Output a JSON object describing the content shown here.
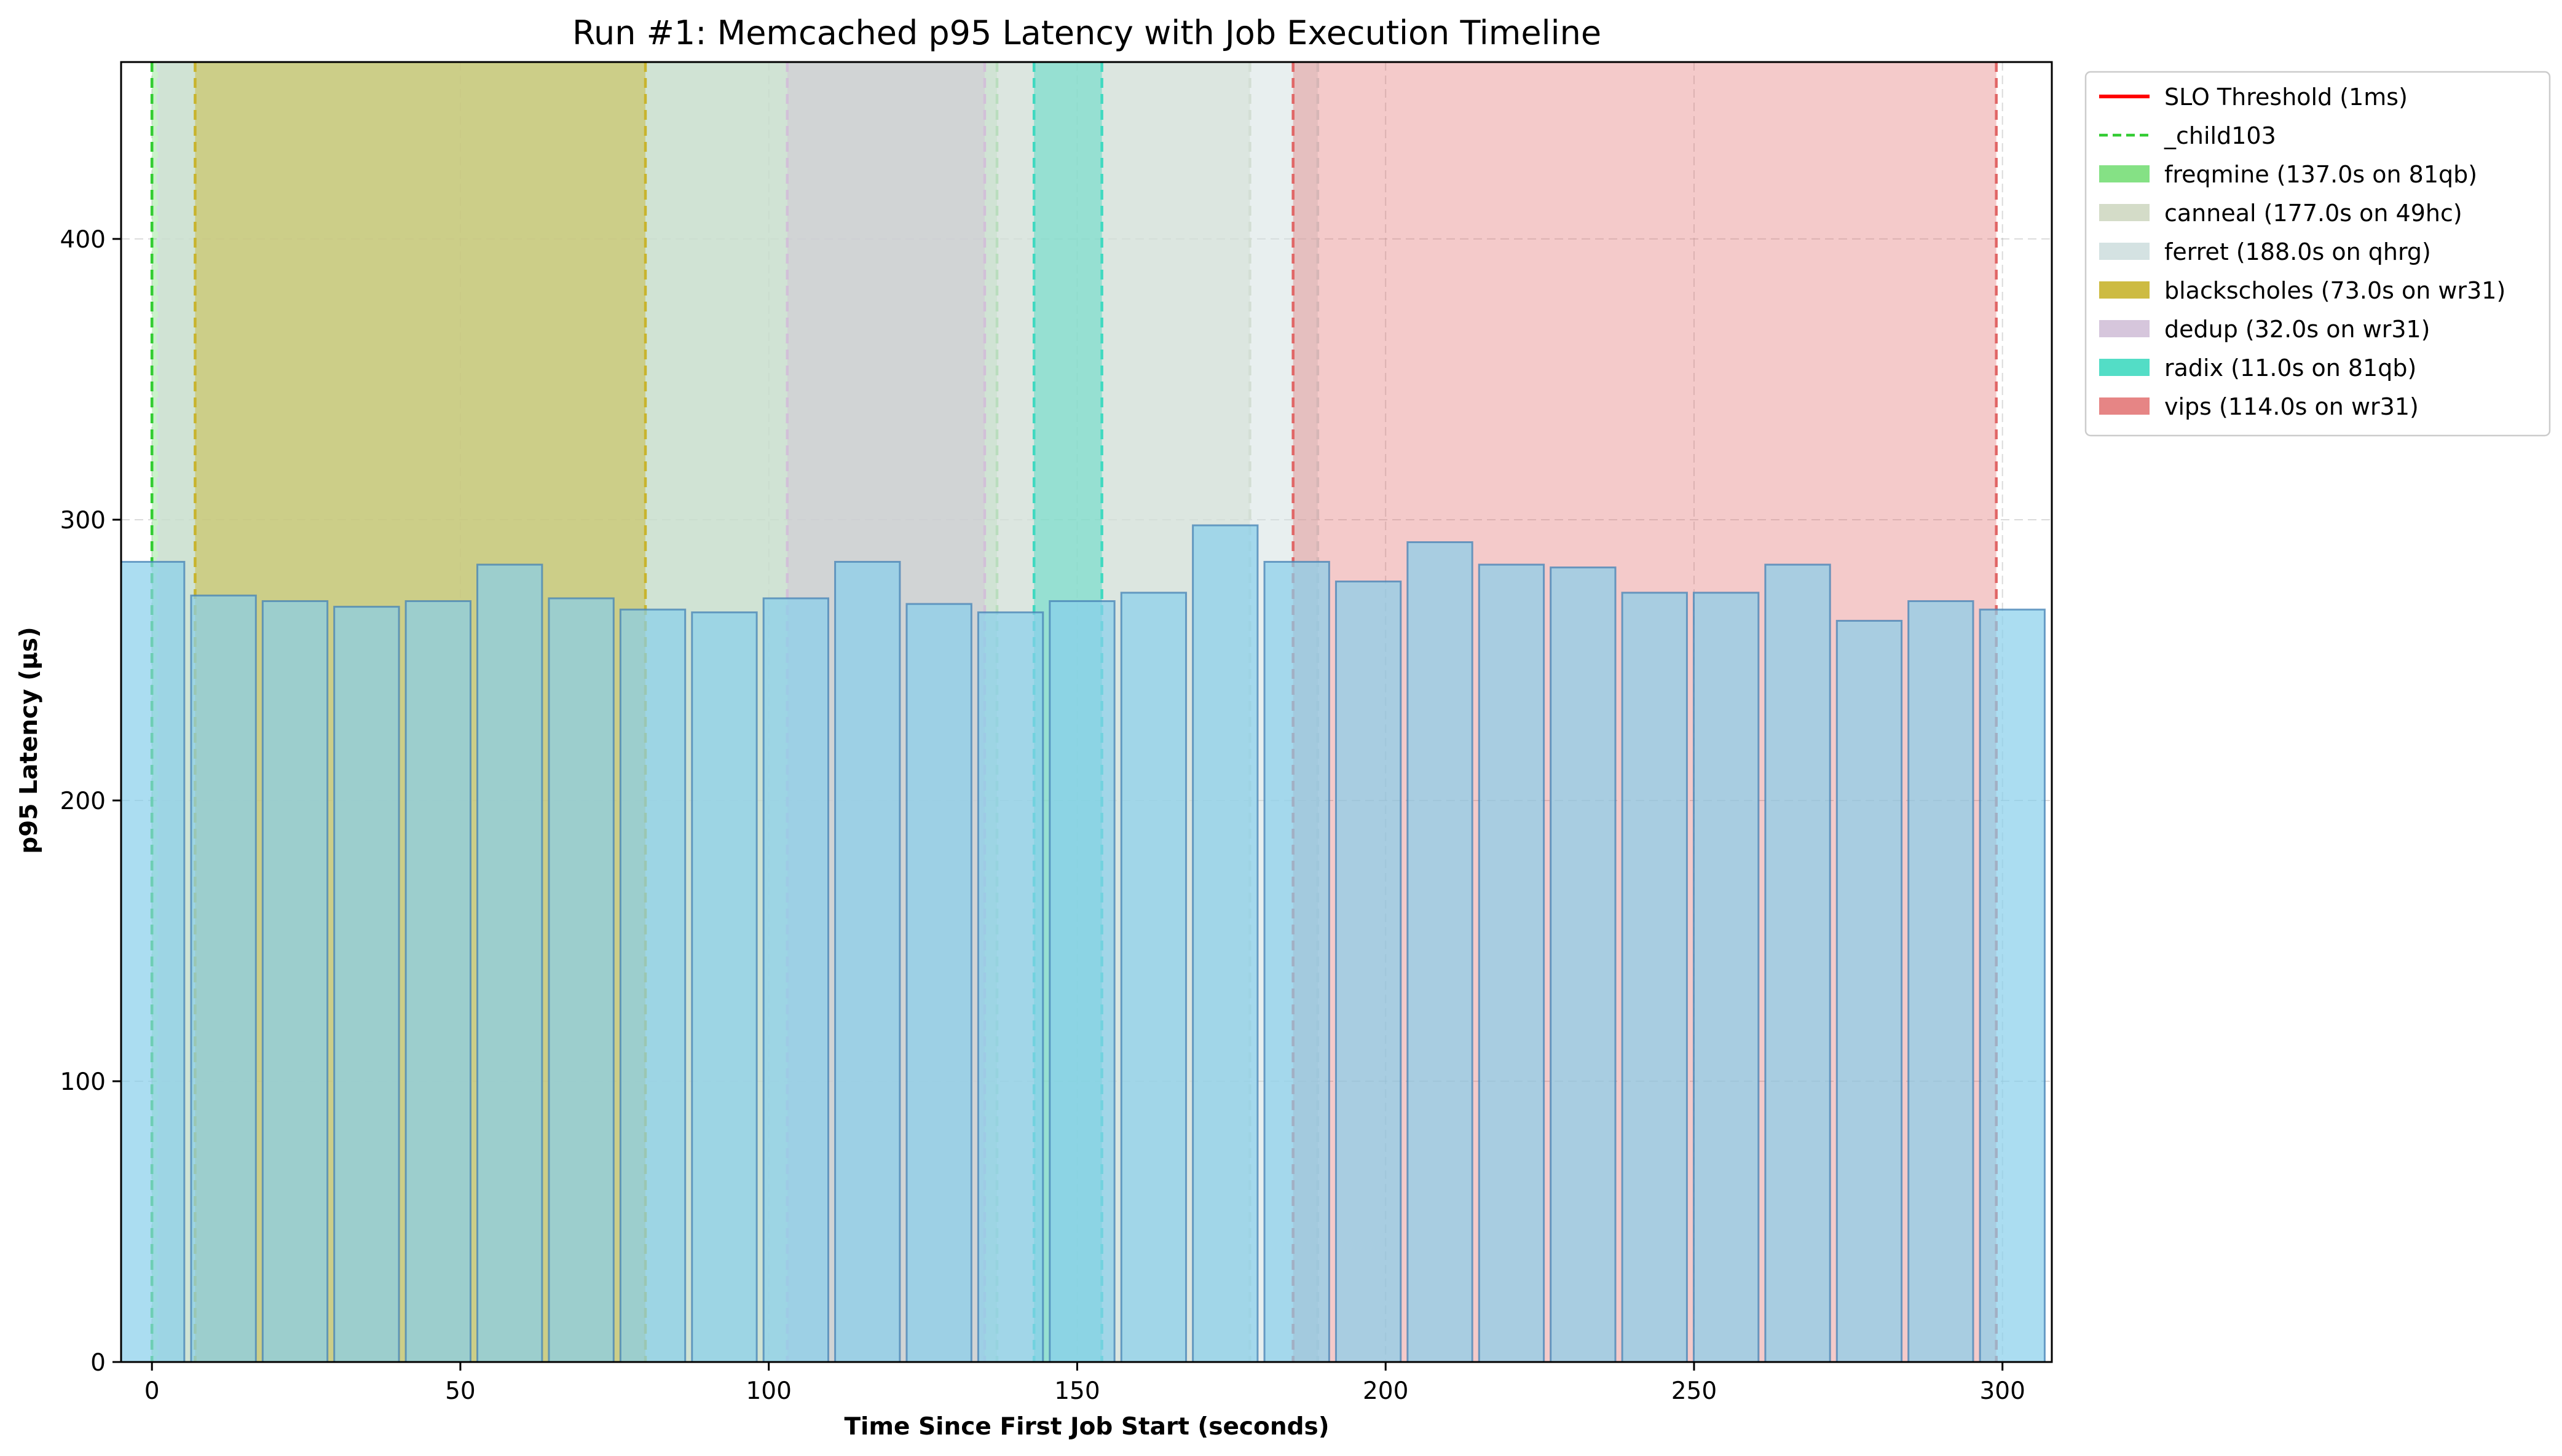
{
  "chart_data": {
    "type": "bar",
    "title": "Run #1: Memcached p95 Latency with Job Execution Timeline",
    "xlabel": "Time Since First Job Start (seconds)",
    "ylabel": "p95 Latency (µs)",
    "xlim": [
      -5,
      308
    ],
    "ylim": [
      0,
      463
    ],
    "xticks": [
      0,
      50,
      100,
      150,
      200,
      250,
      300
    ],
    "yticks": [
      0,
      100,
      200,
      300,
      400
    ],
    "grid": true,
    "legend_position": "outside-top-right",
    "bar_width_seconds": 10.5,
    "bar_color": "#87ceeb",
    "x": [
      0,
      11.6,
      23.2,
      34.8,
      46.4,
      58,
      69.6,
      81.2,
      92.8,
      104.4,
      116,
      127.6,
      139.2,
      150.8,
      162.4,
      174,
      185.6,
      197.2,
      208.8,
      220.4,
      232,
      243.6,
      255.2,
      266.8,
      278.4,
      290,
      301.6
    ],
    "values": [
      285,
      273,
      271,
      269,
      271,
      284,
      272,
      268,
      267,
      272,
      285,
      270,
      267,
      271,
      274,
      298,
      285,
      278,
      292,
      284,
      283,
      274,
      274,
      284,
      264,
      271,
      268
    ],
    "slo": {
      "label": "SLO Threshold (1ms)",
      "value": 1000,
      "color": "#ff0000"
    },
    "reference_line": {
      "label": "_child103",
      "x": 0,
      "color": "#33cc33"
    },
    "jobs": [
      {
        "label": "freqmine (137.0s on 81qb)",
        "start": 0,
        "end": 137,
        "color": "#66d966",
        "alpha": 0.35
      },
      {
        "label": "canneal (177.0s on 49hc)",
        "start": 1,
        "end": 178,
        "color": "#d4dcc8",
        "alpha": 0.55
      },
      {
        "label": "ferret (188.0s on qhrg)",
        "start": 1,
        "end": 189,
        "color": "#d2e0e0",
        "alpha": 0.5
      },
      {
        "label": "blackscholes (73.0s on wr31)",
        "start": 7,
        "end": 80,
        "color": "#c8b42d",
        "alpha": 0.45
      },
      {
        "label": "dedup (32.0s on wr31)",
        "start": 103,
        "end": 135,
        "color": "#d2c0d8",
        "alpha": 0.45
      },
      {
        "label": "radix (11.0s on 81qb)",
        "start": 143,
        "end": 154,
        "color": "#40d9c0",
        "alpha": 0.45
      },
      {
        "label": "vips (114.0s on wr31)",
        "start": 185,
        "end": 299,
        "color": "#e06666",
        "alpha": 0.35
      }
    ]
  }
}
